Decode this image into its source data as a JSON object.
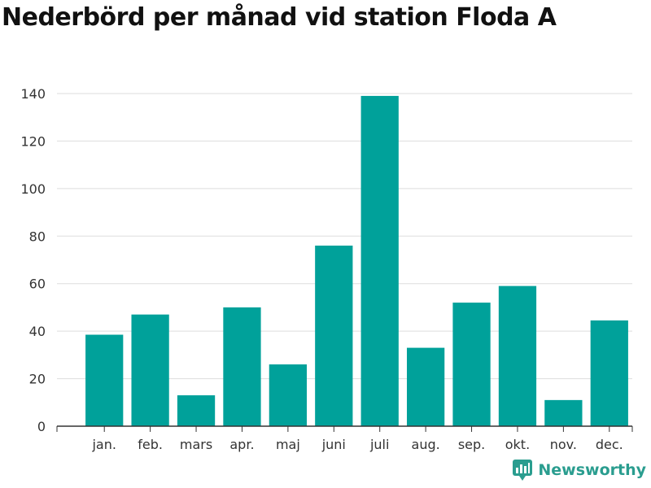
{
  "title": "Nederbörd per månad vid station Floda A",
  "brand": {
    "name": "Newsworthy",
    "icon": "newsworthy-logo-icon",
    "color": "#2a9d8f"
  },
  "colors": {
    "bar": "#00a19a",
    "grid": "#dddddd",
    "axis": "#333333"
  },
  "chart_data": {
    "type": "bar",
    "title": "Nederbörd per månad vid station Floda A",
    "xlabel": "",
    "ylabel": "",
    "categories": [
      "jan.",
      "feb.",
      "mars",
      "apr.",
      "maj",
      "juni",
      "juli",
      "aug.",
      "sep.",
      "okt.",
      "nov.",
      "dec."
    ],
    "values": [
      38.5,
      47,
      13,
      50,
      26,
      76,
      139,
      33,
      52,
      59,
      11,
      44.5
    ],
    "ylim": [
      0,
      140
    ],
    "yticks": [
      0,
      20,
      40,
      60,
      80,
      100,
      120,
      140
    ],
    "grid": true,
    "legend": "none"
  }
}
